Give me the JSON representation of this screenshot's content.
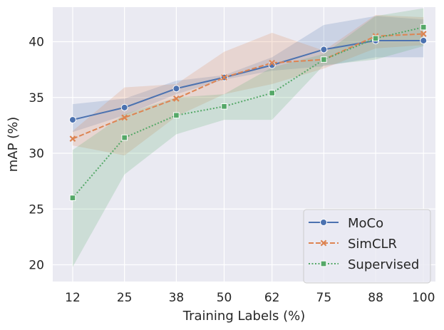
{
  "chart_data": {
    "type": "line",
    "xlabel": "Training Labels (%)",
    "ylabel": "mAP (%)",
    "categories": [
      "12",
      "25",
      "38",
      "50",
      "62",
      "75",
      "88",
      "100"
    ],
    "x": [
      12,
      25,
      38,
      50,
      62,
      75,
      88,
      100
    ],
    "yticks": [
      20,
      25,
      30,
      35,
      40
    ],
    "ylim": [
      18.5,
      43.1
    ],
    "xlim": [
      7,
      103
    ],
    "grid": true,
    "legend_position": "lower-right",
    "series": [
      {
        "name": "MoCo",
        "values": [
          33.0,
          34.1,
          35.8,
          36.8,
          37.9,
          39.3,
          40.1,
          40.1
        ],
        "ci_upper": [
          34.4,
          34.9,
          36.5,
          37.0,
          38.6,
          41.5,
          42.3,
          42.0
        ],
        "ci_lower": [
          31.9,
          33.4,
          35.3,
          36.6,
          37.4,
          37.8,
          38.6,
          38.6
        ],
        "color": "#4c72b0",
        "linestyle": "solid",
        "marker": "circle"
      },
      {
        "name": "SimCLR",
        "values": [
          31.3,
          33.2,
          34.9,
          36.8,
          38.1,
          38.4,
          40.5,
          40.7
        ],
        "ci_upper": [
          32.0,
          35.9,
          36.2,
          39.1,
          40.8,
          39.2,
          42.4,
          42.2
        ],
        "ci_lower": [
          30.7,
          29.8,
          33.3,
          35.3,
          36.2,
          37.6,
          39.4,
          39.7
        ],
        "color": "#dd8452",
        "linestyle": "dashed",
        "marker": "x"
      },
      {
        "name": "Supervised",
        "values": [
          26.0,
          31.4,
          33.4,
          34.2,
          35.4,
          38.4,
          40.3,
          41.3
        ],
        "ci_upper": [
          30.3,
          33.5,
          35.0,
          35.3,
          37.7,
          38.9,
          42.3,
          43.0
        ],
        "ci_lower": [
          19.8,
          28.1,
          31.7,
          33.0,
          33.0,
          37.9,
          38.4,
          39.6
        ],
        "color": "#55a868",
        "linestyle": "dotted",
        "marker": "square"
      }
    ]
  }
}
